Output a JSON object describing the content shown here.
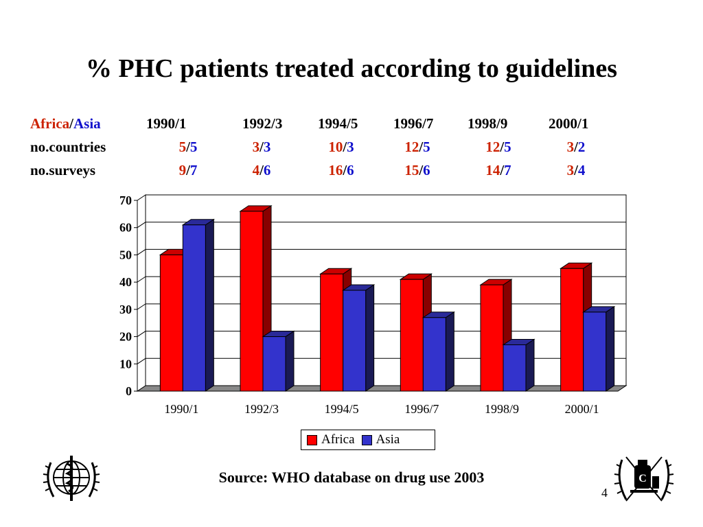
{
  "slide": {
    "title": "% PHC patients treated according to guidelines",
    "source": "Source: WHO database on drug use 2003",
    "page_number": "4"
  },
  "table": {
    "header_africa": "Africa",
    "header_sep": "/",
    "header_asia": "Asia",
    "periods": [
      "1990/1",
      "1992/3",
      "1994/5",
      "1996/7",
      "1998/9",
      "2000/1"
    ],
    "rows": [
      {
        "label": "no.countries",
        "africa": [
          "5",
          "3",
          "10",
          "12",
          "12",
          "3"
        ],
        "asia": [
          "5",
          "3",
          "3",
          "5",
          "5",
          "2"
        ]
      },
      {
        "label": "no.surveys",
        "africa": [
          "9",
          "4",
          "16",
          "15",
          "14",
          "3"
        ],
        "asia": [
          "7",
          "6",
          "6",
          "6",
          "7",
          "4"
        ]
      }
    ]
  },
  "chart_data": {
    "type": "bar",
    "categories": [
      "1990/1",
      "1992/3",
      "1994/5",
      "1996/7",
      "1998/9",
      "2000/1"
    ],
    "series": [
      {
        "name": "Africa",
        "values": [
          50,
          66,
          43,
          41,
          39,
          45
        ],
        "color": "#ff0000"
      },
      {
        "name": "Asia",
        "values": [
          61,
          20,
          37,
          27,
          17,
          29
        ],
        "color": "#3333cc"
      }
    ],
    "ylim": [
      0,
      70
    ],
    "yticks": [
      "0",
      "10",
      "20",
      "30",
      "40",
      "50",
      "60",
      "70"
    ],
    "grid": true,
    "legend_position": "bottom",
    "style": "3d-clustered-column"
  },
  "logos": {
    "left": "who-emblem",
    "right": "essential-drugs-emblem"
  },
  "colors": {
    "africa_text": "#cc2200",
    "asia_text": "#1010cc"
  }
}
